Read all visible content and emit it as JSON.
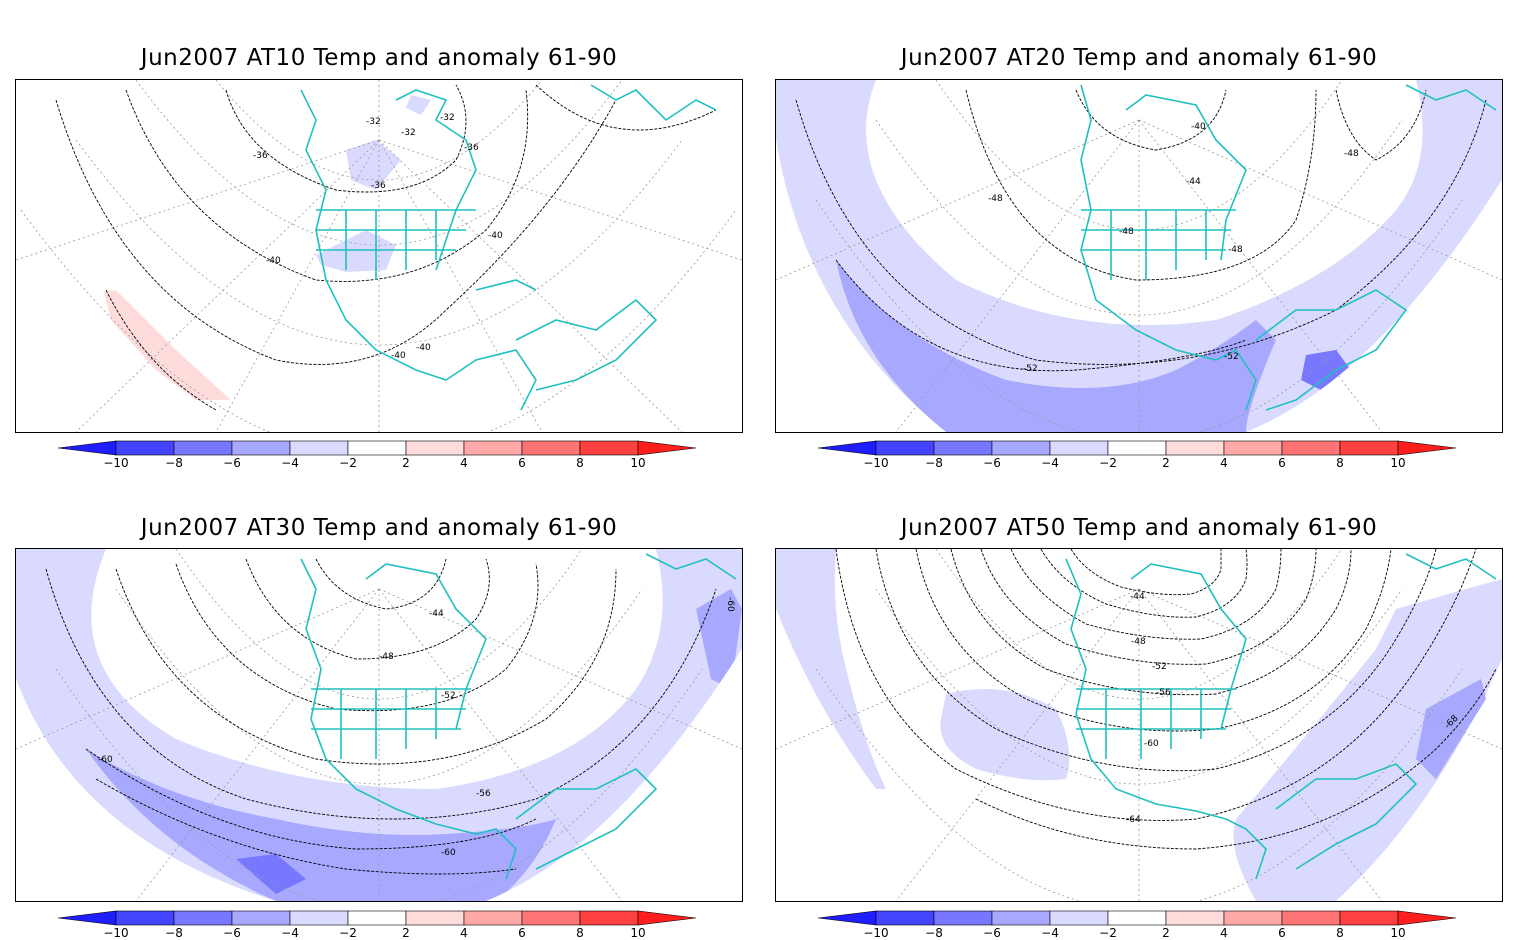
{
  "panels": [
    {
      "title": "Jun2007 AT10 Temp and anomaly 61-90",
      "contour_labels": [
        "-32",
        "-32",
        "-32",
        "-36",
        "-36",
        "-36",
        "-40",
        "-40",
        "-40",
        "-40"
      ]
    },
    {
      "title": "Jun2007 AT20 Temp and anomaly 61-90",
      "contour_labels": [
        "-40",
        "-44",
        "-48",
        "-48",
        "-48",
        "-48",
        "-52",
        "-52"
      ]
    },
    {
      "title": "Jun2007 AT30 Temp and anomaly 61-90",
      "contour_labels": [
        "-44",
        "-48",
        "-52",
        "-56",
        "-60",
        "-60",
        "-60"
      ]
    },
    {
      "title": "Jun2007 AT50 Temp and anomaly 61-90",
      "contour_labels": [
        "-44",
        "-48",
        "-52",
        "-56",
        "-60",
        "-64",
        "-68"
      ]
    }
  ],
  "colorbar": {
    "ticks": [
      "-10",
      "-8",
      "-6",
      "-4",
      "-2",
      "2",
      "4",
      "6",
      "8",
      "10"
    ],
    "colors": [
      "#1e1eff",
      "#4444ff",
      "#7777ff",
      "#a8a8ff",
      "#dadaff",
      "#ffffff",
      "#ffdcdc",
      "#ffa8a8",
      "#ff7474",
      "#ff4040",
      "#ff1e1e"
    ]
  },
  "colors": {
    "coastline": "#20c0c0",
    "contour": "#000000",
    "graticule": "#9a9a9a"
  }
}
